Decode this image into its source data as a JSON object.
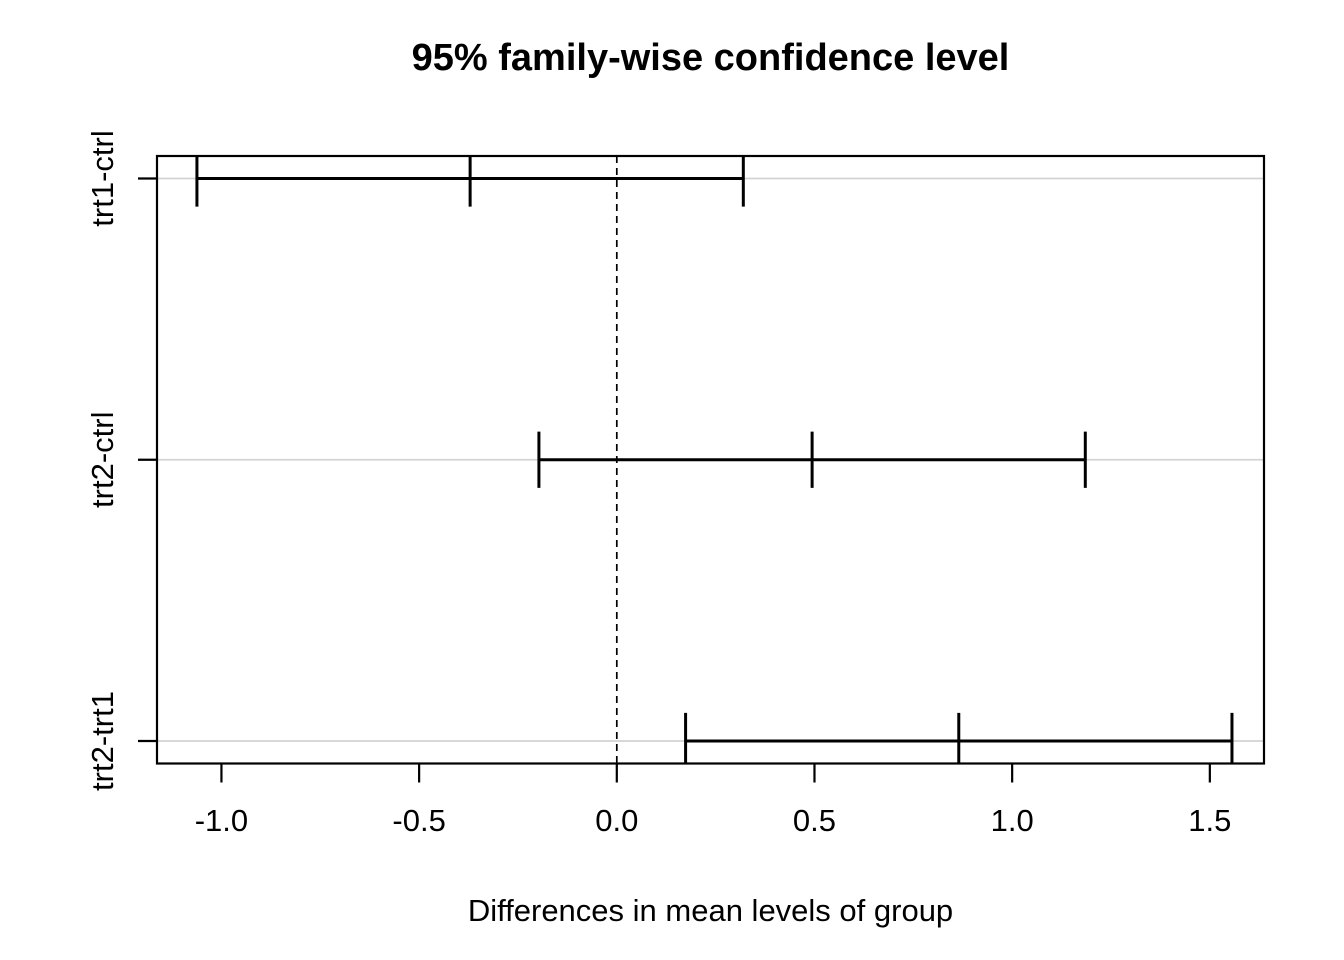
{
  "chart_data": {
    "type": "errorbar",
    "title": "95% family-wise confidence level",
    "xlabel": "Differences in mean levels of group",
    "ylabel": "",
    "comparisons": [
      {
        "label": "trt1-ctrl",
        "position": 3,
        "lower": -1.062,
        "center": -0.371,
        "upper": 0.32
      },
      {
        "label": "trt2-ctrl",
        "position": 2,
        "lower": -0.197,
        "center": 0.494,
        "upper": 1.185
      },
      {
        "label": "trt2-trt1",
        "position": 1,
        "lower": 0.174,
        "center": 0.865,
        "upper": 1.556
      }
    ],
    "x_ticks": [
      {
        "value": -1.0,
        "label": "-1.0"
      },
      {
        "value": -0.5,
        "label": "-0.5"
      },
      {
        "value": 0.0,
        "label": "0.0"
      },
      {
        "value": 0.5,
        "label": "0.5"
      },
      {
        "value": 1.0,
        "label": "1.0"
      },
      {
        "value": 1.5,
        "label": "1.5"
      }
    ],
    "xlim": [
      -1.163,
      1.637
    ],
    "ylim": [
      0.92,
      3.08
    ],
    "cap_half_height_units": 0.1,
    "reference_line": {
      "x": 0,
      "style": "dashed"
    },
    "grid": {
      "horizontal_rows": true
    },
    "legend": "none",
    "colors": {
      "line": "#000000",
      "grid": "#d3d3d3",
      "background": "#ffffff"
    }
  }
}
